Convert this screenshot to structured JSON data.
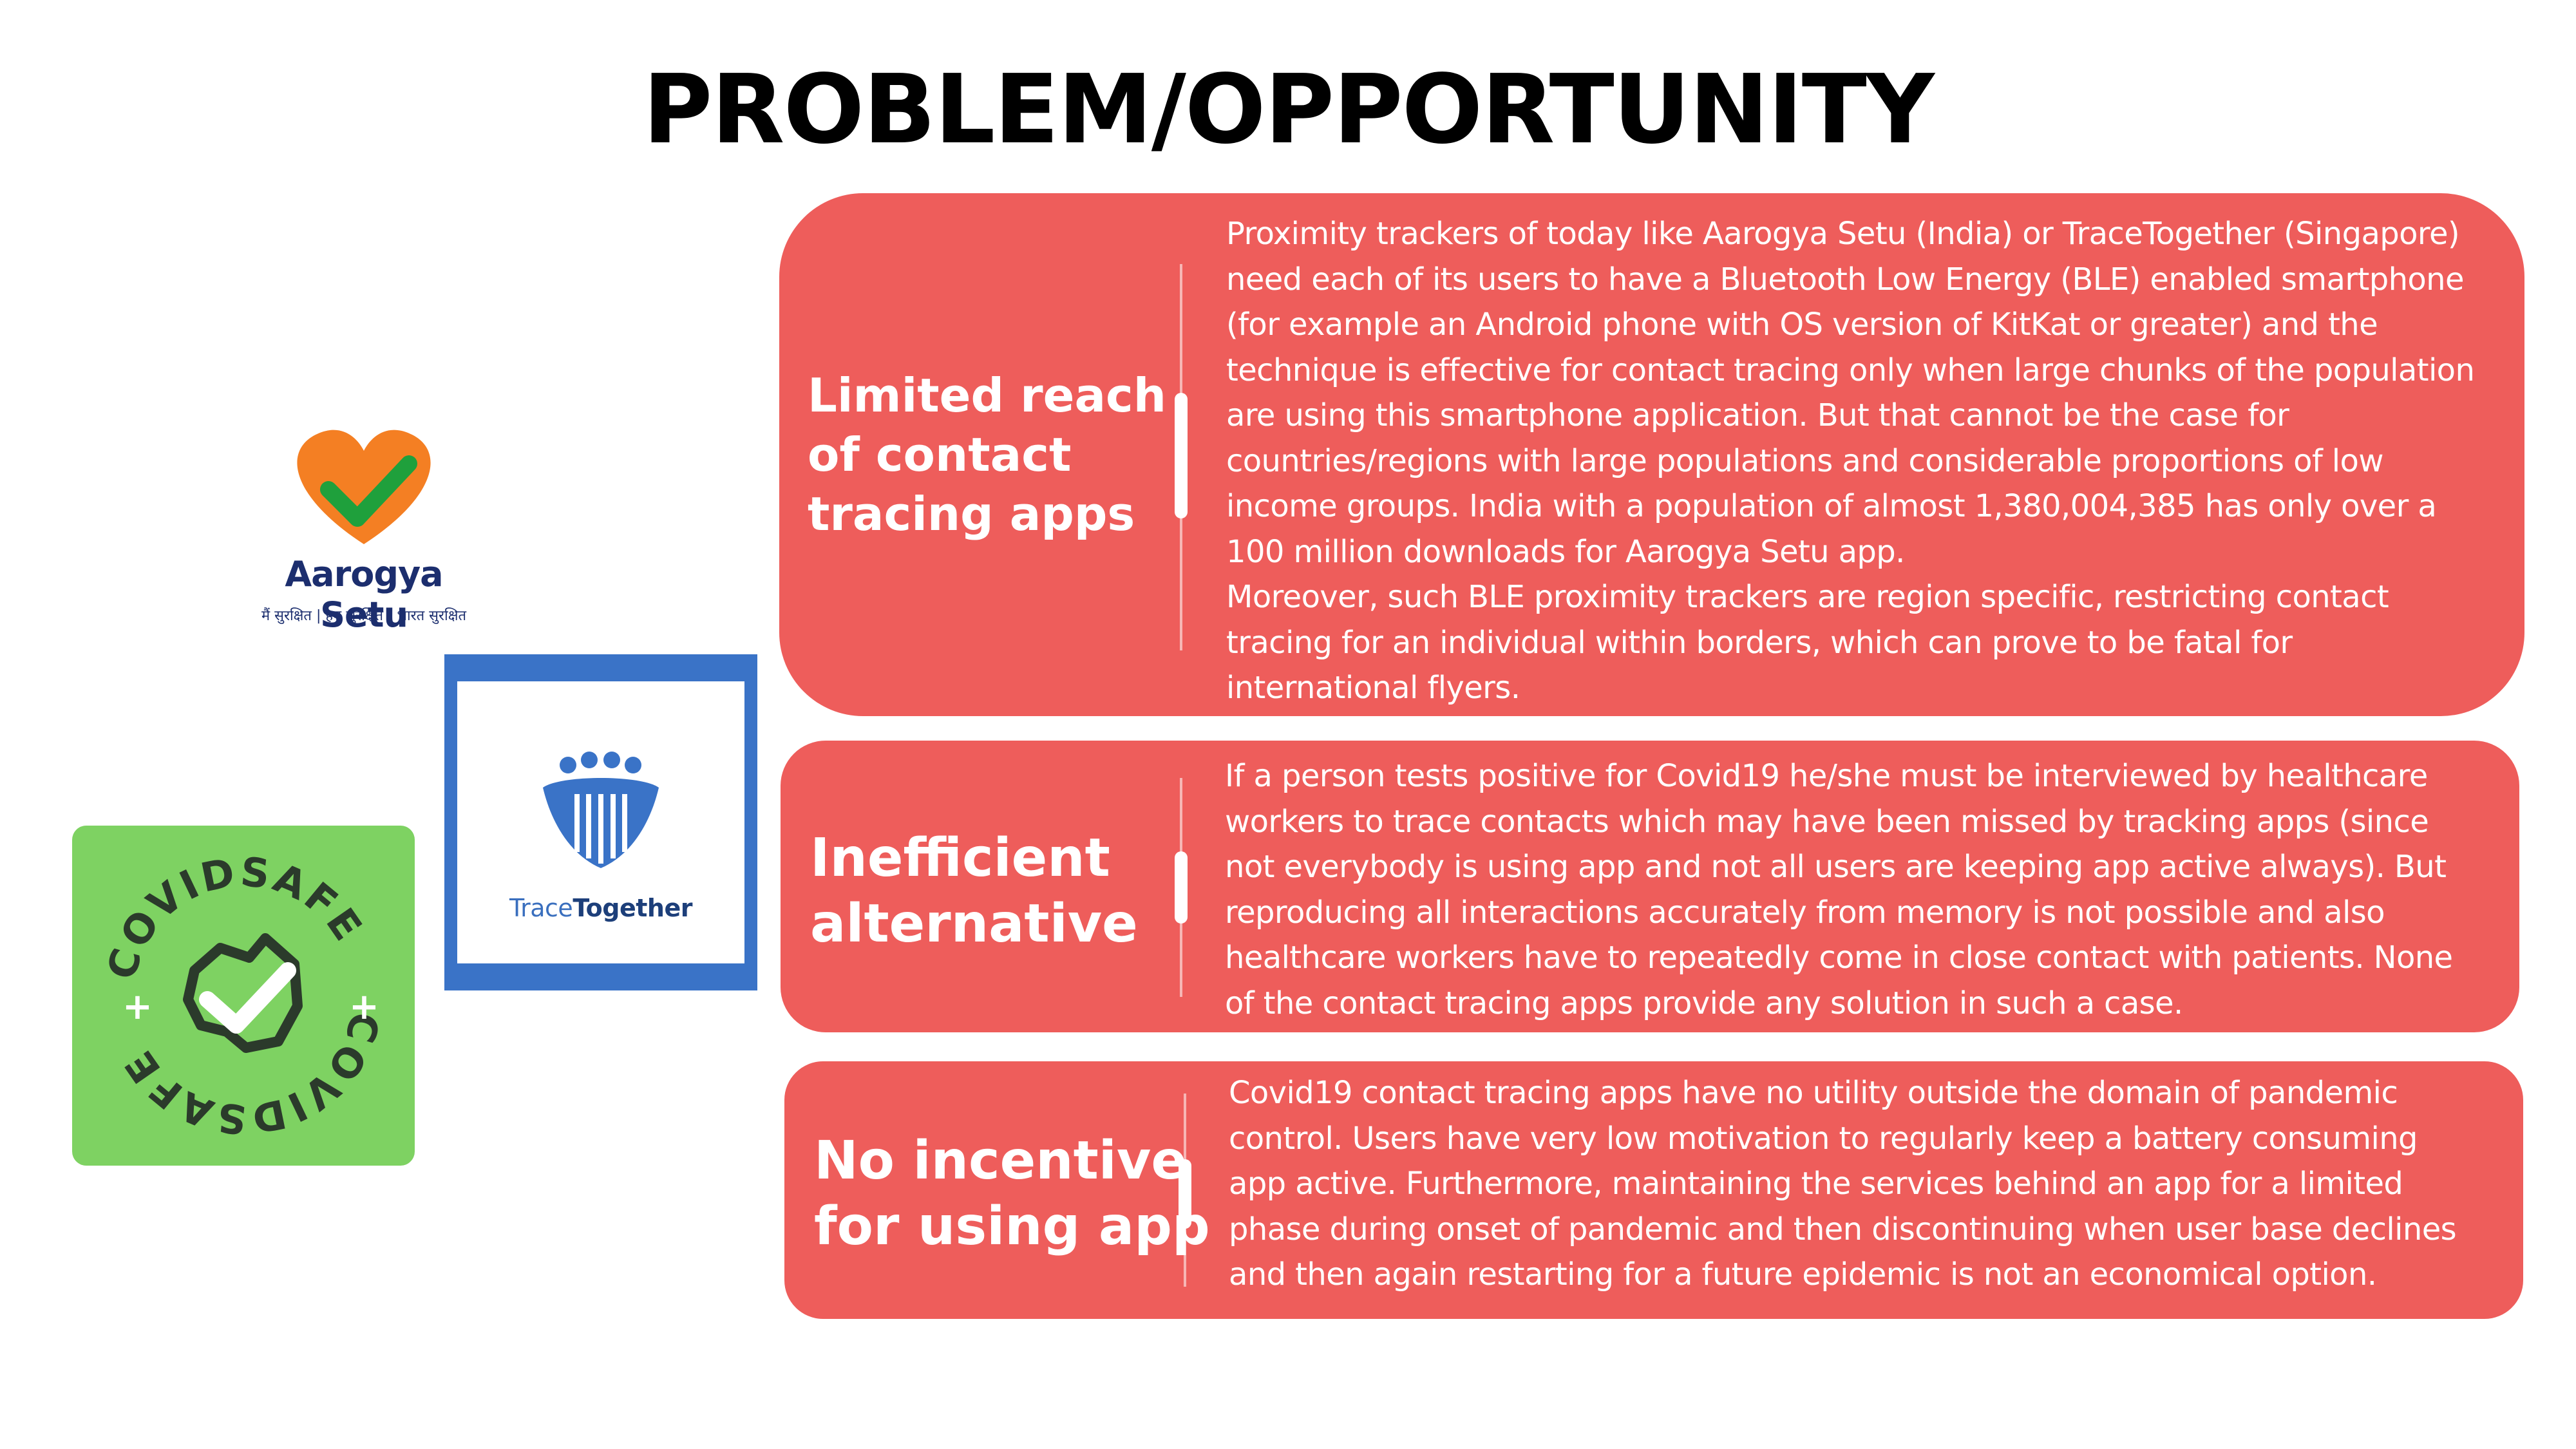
{
  "page": {
    "title": "PROBLEM/OPPORTUNITY"
  },
  "cards": [
    {
      "title": "Limited reach\nof contact\ntracing apps",
      "body": "Proximity trackers of today like Aarogya Setu (India) or TraceTogether (Singapore)\nneed each of its users to have a Bluetooth Low Energy (BLE) enabled smartphone\n(for example an Android phone with OS version of KitKat or greater) and the\ntechnique is effective for contact tracing only when large chunks of the population\nare using this smartphone application. But that cannot be the case for\ncountries/regions with large populations and considerable proportions of low\nincome groups. India with a population of almost 1,380,004,385 has only over a\n100 million downloads for Aarogya Setu app.\nMoreover, such BLE proximity trackers are region specific, restricting contact\ntracing for an individual within borders, which can prove to be fatal for\ninternational flyers."
    },
    {
      "title": "Inefficient\nalternative",
      "body": "If a person tests positive for Covid19 he/she must be interviewed by healthcare\nworkers to trace contacts which may have been missed by tracking apps (since\nnot everybody is using app and not all users are keeping app active always). But\nreproducing all interactions accurately from memory is not possible and also\nhealthcare workers have to repeatedly come in close contact with patients. None\nof the contact tracing apps provide any solution in such a case."
    },
    {
      "title": "No incentive\nfor using app",
      "body": "Covid19 contact tracing apps have no utility outside the domain of pandemic\ncontrol. Users have very low motivation to regularly keep a battery consuming\napp active. Furthermore, maintaining the services behind an app for a limited\nphase during onset of pandemic and then discontinuing when user base declines\nand then again restarting for a future epidemic is not an economical option."
    }
  ],
  "logos": {
    "aarogya": {
      "name": "Aarogya Setu",
      "tagline": "मैं सुरक्षित | हम सुरक्षित | भारत सुरक्षित",
      "icon": "heart-check-icon"
    },
    "trace": {
      "name_light": "Trace",
      "name_bold": "Together",
      "icon": "people-group-icon"
    },
    "covidsafe": {
      "text": "COVIDSAFE",
      "icon": "australia-check-icon"
    }
  },
  "colors": {
    "card": "#ee5d5b",
    "aarogya_heart": "#f47f23",
    "aarogya_check": "#1fa03c",
    "aarogya_text": "#1c2e6e",
    "trace_blue": "#3a73c7",
    "covidsafe_green": "#7ed262"
  }
}
